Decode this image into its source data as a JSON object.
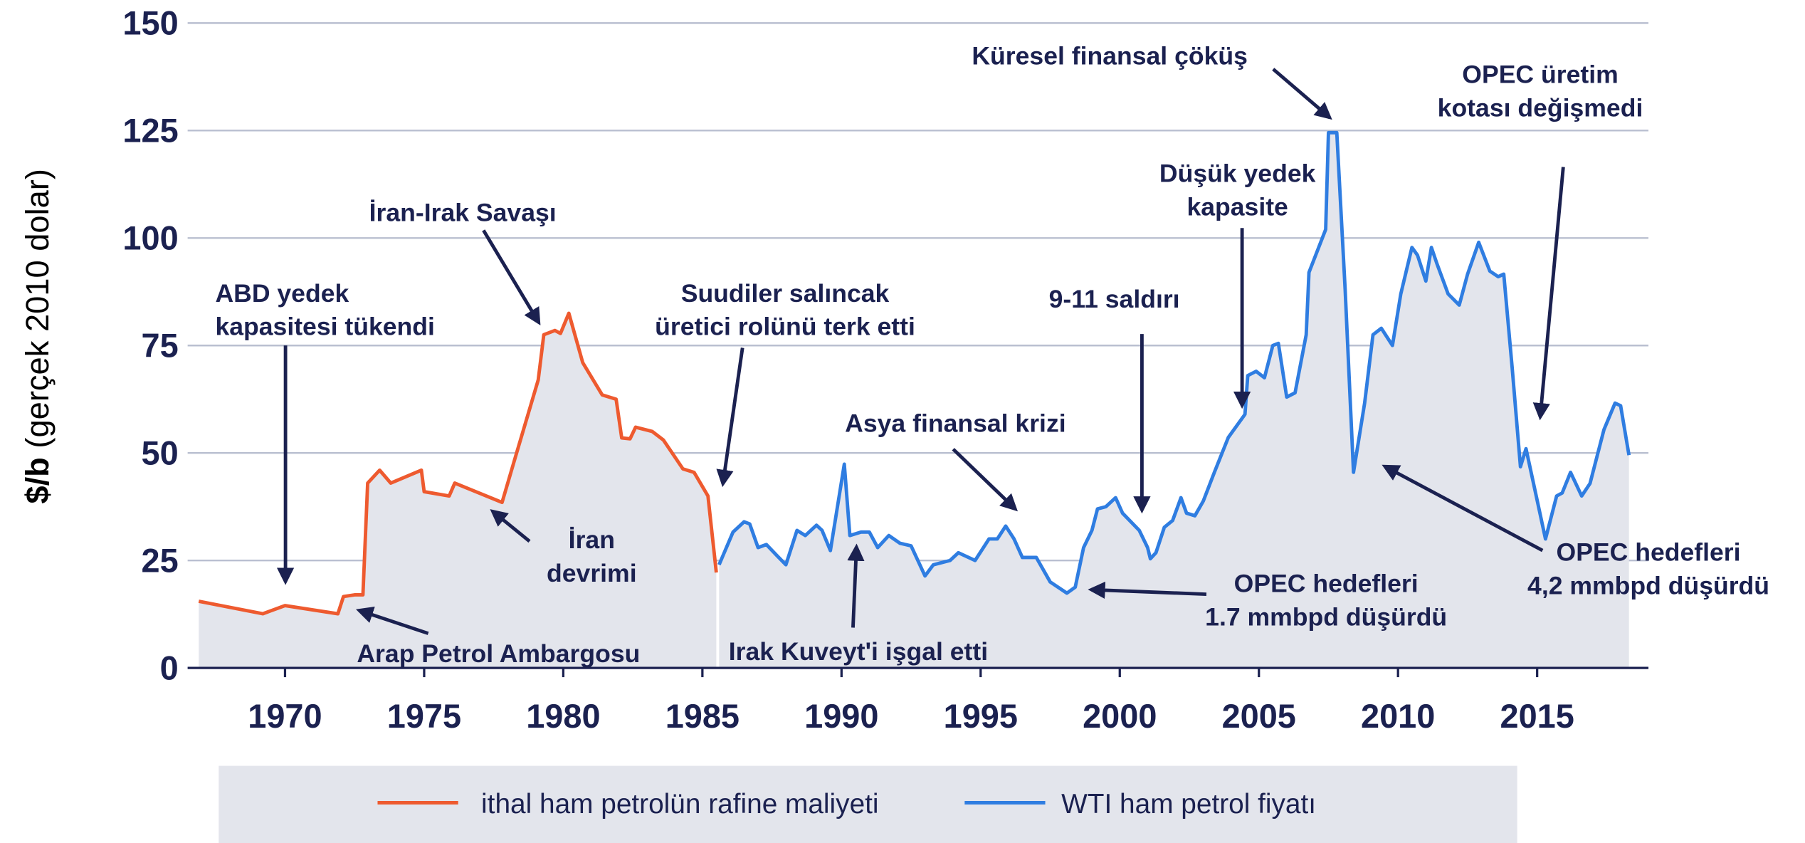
{
  "chart_data": {
    "type": "line",
    "y_label": {
      "unit": "$/b",
      "text": "(gerçek 2010 dolar)"
    },
    "xlim": [
      1966.5,
      2019
    ],
    "xticks": [
      1970,
      1975,
      1980,
      1985,
      1990,
      1995,
      2000,
      2005,
      2010,
      2015
    ],
    "ylim": [
      0,
      150
    ],
    "yticks": [
      0,
      25,
      50,
      75,
      100,
      125,
      150
    ],
    "grid": true,
    "area_fill": "#e3e5ec",
    "legend": "bottom",
    "series": [
      {
        "name": "ithal ham petrolün rafine maliyeti",
        "color": "#ee5a2f",
        "x": [
          1966.9,
          1969.2,
          1970,
          1971.9,
          1972.1,
          1972.5,
          1972.8,
          1972.97,
          1973.4,
          1973.8,
          1974.9,
          1975.0,
          1975.9,
          1976.1,
          1977.8,
          1978.3,
          1979.1,
          1979.3,
          1979.7,
          1979.9,
          1980.2,
          1980.7,
          1981.4,
          1981.9,
          1982.1,
          1982.4,
          1982.6,
          1983.2,
          1983.6,
          1984.3,
          1984.7,
          1985.2,
          1985.5
        ],
        "values": [
          15.5,
          12.6,
          14.5,
          12.6,
          16.6,
          17,
          17,
          43,
          46,
          43,
          46,
          41,
          40,
          43,
          38.5,
          49.5,
          67,
          77.5,
          78.5,
          77.8,
          82.5,
          71,
          63.5,
          62.5,
          53.5,
          53.3,
          56,
          55,
          53,
          46.3,
          45.5,
          40,
          22.2
        ]
      },
      {
        "name": "WTI ham petrol fiyatı",
        "color": "#2f7de1",
        "x": [
          1985.6,
          1986.1,
          1986.5,
          1986.7,
          1987,
          1987.3,
          1987.7,
          1988,
          1988.4,
          1988.7,
          1989.1,
          1989.3,
          1989.6,
          1990.1,
          1990.3,
          1990.7,
          1991,
          1991.3,
          1991.7,
          1992.1,
          1992.5,
          1993,
          1993.3,
          1993.9,
          1994.2,
          1994.8,
          1995.3,
          1995.6,
          1995.9,
          1996.2,
          1996.5,
          1997,
          1997.5,
          1998.1,
          1998.4,
          1998.7,
          1999,
          1999.2,
          1999.5,
          1999.85,
          2000.1,
          2000.7,
          2001,
          2001.1,
          2001.3,
          2001.6,
          2001.9,
          2002.2,
          2002.4,
          2002.7,
          2003,
          2003.4,
          2003.9,
          2004.5,
          2004.6,
          2004.9,
          2005.2,
          2005.5,
          2005.7,
          2006,
          2006.3,
          2006.7,
          2006.8,
          2007.4,
          2007.5,
          2007.8,
          2008.1,
          2008.4,
          2008.8,
          2009.1,
          2009.4,
          2009.8,
          2010.1,
          2010.5,
          2010.7,
          2011,
          2011.2,
          2011.4,
          2011.8,
          2012.2,
          2012.5,
          2012.9,
          2013.3,
          2013.6,
          2013.8,
          2014.1,
          2014.4,
          2014.6,
          2015.3,
          2015.7,
          2015.9,
          2016.2,
          2016.6,
          2016.9,
          2017.4,
          2017.8,
          2018,
          2018.3
        ],
        "values": [
          24,
          31.6,
          34,
          33.5,
          28,
          28.7,
          26,
          24,
          32,
          30.8,
          33.2,
          32,
          27.3,
          47.4,
          30.8,
          31.6,
          31.6,
          28,
          30.8,
          29,
          28.4,
          21.4,
          24,
          25,
          26.8,
          25,
          30,
          30,
          33,
          30,
          25.7,
          25.7,
          20,
          17.4,
          18.8,
          28,
          32,
          37,
          37.5,
          39.6,
          36,
          32,
          28,
          25.4,
          26.8,
          32.7,
          34.3,
          39.6,
          36,
          35.4,
          38.8,
          45.5,
          53.6,
          59,
          68,
          69,
          67.5,
          75,
          75.5,
          63,
          64,
          77.5,
          92,
          102,
          124.5,
          124.5,
          88,
          45.5,
          61.6,
          77.5,
          79,
          75,
          87,
          97.8,
          96,
          90,
          97.8,
          94,
          87,
          84.4,
          91.6,
          99,
          92.3,
          91,
          91.6,
          70,
          46.8,
          51,
          30,
          40,
          40.7,
          45.5,
          40,
          42.9,
          55.4,
          61.6,
          61,
          49.5
        ]
      }
    ],
    "annotations": [
      {
        "lines": [
          "ABD yedek",
          "kapasitesi tükendi"
        ]
      },
      {
        "lines": [
          "İran-Irak Savaşı"
        ]
      },
      {
        "lines": [
          "İran",
          "devrimi"
        ]
      },
      {
        "lines": [
          "Arap Petrol Ambargosu"
        ]
      },
      {
        "lines": [
          "Suudiler salıncak",
          "üretici rolünü terk etti"
        ]
      },
      {
        "lines": [
          "Asya finansal krizi"
        ]
      },
      {
        "lines": [
          "Irak Kuveyt'i işgal etti"
        ]
      },
      {
        "lines": [
          "9-11 saldırı"
        ]
      },
      {
        "lines": [
          "Düşük yedek",
          "kapasite"
        ]
      },
      {
        "lines": [
          "Küresel finansal çöküş"
        ]
      },
      {
        "lines": [
          "OPEC üretim",
          "kotası değişmedi"
        ]
      },
      {
        "lines": [
          "OPEC hedefleri",
          "1.7 mmbpd düşürdü"
        ]
      },
      {
        "lines": [
          "OPEC hedefleri",
          "4,2 mmbpd düşürdü"
        ]
      }
    ]
  }
}
